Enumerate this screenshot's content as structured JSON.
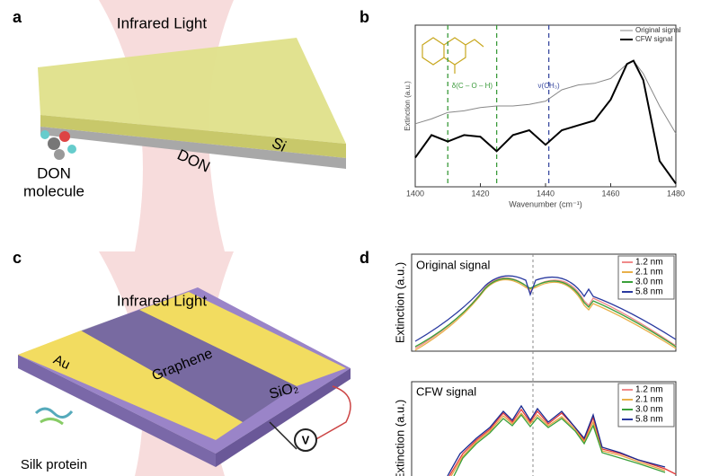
{
  "panel_labels": [
    "a",
    "b",
    "c",
    "d"
  ],
  "panel_a": {
    "beam": "Infrared Light",
    "molecule": [
      "DON",
      "molecule"
    ],
    "layer": "DON",
    "substrate": "Si"
  },
  "panel_c": {
    "beam": "Infrared Light",
    "electrode": "Au",
    "sheet": "Graphene",
    "substrate": "SiO₂",
    "meter": "V",
    "protein": "Silk protein"
  },
  "panel_d": {
    "top_title": "Original signal",
    "bottom_title": "CFW signal",
    "ylabel": "Extinction (a.u.)",
    "legend": [
      {
        "name": "1.2 nm",
        "color": "#f08a8a"
      },
      {
        "name": "2.1 nm",
        "color": "#e8b04a"
      },
      {
        "name": "3.0 nm",
        "color": "#3aa03a"
      },
      {
        "name": "5.8 nm",
        "color": "#2a3aa0"
      }
    ]
  },
  "chart_data": {
    "type": "line",
    "xlabel": "Wavenumber (cm⁻¹)",
    "ylabel": "Extinction (a.u.)",
    "x": [
      1400,
      1405,
      1410,
      1415,
      1420,
      1425,
      1430,
      1435,
      1440,
      1445,
      1450,
      1455,
      1460,
      1465,
      1467,
      1470,
      1475,
      1480
    ],
    "series": [
      {
        "name": "Original signal",
        "color": "#888888",
        "values": [
          0.39,
          0.42,
          0.46,
          0.47,
          0.49,
          0.5,
          0.5,
          0.51,
          0.53,
          0.6,
          0.63,
          0.64,
          0.67,
          0.76,
          0.78,
          0.7,
          0.5,
          0.33
        ]
      },
      {
        "name": "CFW signal",
        "color": "#000000",
        "values": [
          0.18,
          0.32,
          0.28,
          0.32,
          0.31,
          0.22,
          0.32,
          0.35,
          0.26,
          0.35,
          0.38,
          0.41,
          0.54,
          0.76,
          0.78,
          0.66,
          0.16,
          0.02
        ]
      }
    ],
    "xlim": [
      1400,
      1480
    ],
    "xticks": [
      1400,
      1420,
      1440,
      1460,
      1480
    ],
    "ylim": [
      0,
      1
    ],
    "vlines": [
      {
        "x": 1410,
        "color": "#3a9a3a"
      },
      {
        "x": 1425,
        "color": "#3a9a3a"
      },
      {
        "x": 1441,
        "color": "#3a4aa0"
      }
    ],
    "annotations": [
      "δ(C – O – H)",
      "ν(CH₃)"
    ]
  }
}
